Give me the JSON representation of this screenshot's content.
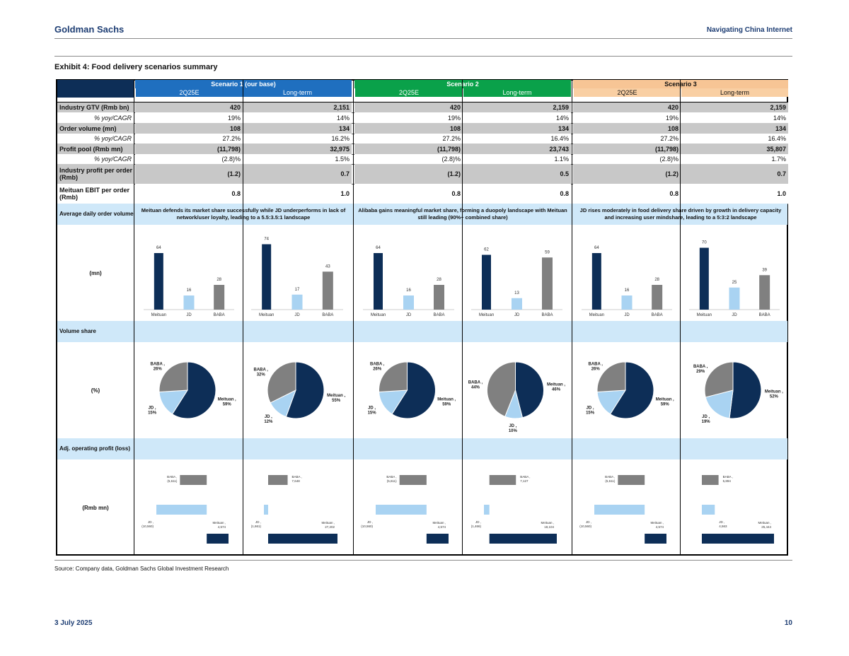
{
  "header": {
    "brand": "Goldman Sachs",
    "report": "Navigating China Internet"
  },
  "exhibit_title": "Exhibit 4: Food delivery scenarios summary",
  "scenarios": [
    {
      "name": "Scenario 1 (our base)",
      "color": "#1f6fbf",
      "sub_color": "#1f6fbf"
    },
    {
      "name": "Scenario 2",
      "color": "#0aa14a",
      "sub_color": "#0aa14a"
    },
    {
      "name": "Scenario 3",
      "color": "#f7c595",
      "sub_color": "#f9cfa3"
    }
  ],
  "col_labels": [
    "2Q25E",
    "Long-term",
    "2Q25E",
    "Long-term",
    "2Q25E",
    "Long-term"
  ],
  "rows": [
    {
      "label": "Industry GTV (Rmb bn)",
      "kind": "main",
      "values": [
        "420",
        "2,151",
        "420",
        "2,159",
        "420",
        "2,159"
      ]
    },
    {
      "label": "% yoy/CAGR",
      "kind": "sub",
      "values": [
        "19%",
        "14%",
        "19%",
        "14%",
        "19%",
        "14%"
      ]
    },
    {
      "label": "Order volume (mn)",
      "kind": "main",
      "values": [
        "108",
        "134",
        "108",
        "134",
        "108",
        "134"
      ]
    },
    {
      "label": "% yoy/CAGR",
      "kind": "sub",
      "values": [
        "27.2%",
        "16.2%",
        "27.2%",
        "16.4%",
        "27.2%",
        "16.4%"
      ]
    },
    {
      "label": "Profit pool (Rmb mn)",
      "kind": "main",
      "values": [
        "(11,798)",
        "32,975",
        "(11,798)",
        "23,743",
        "(11,798)",
        "35,807"
      ]
    },
    {
      "label": "% yoy/CAGR",
      "kind": "sub",
      "values": [
        "(2.8)%",
        "1.5%",
        "(2.8)%",
        "1.1%",
        "(2.8)%",
        "1.7%"
      ]
    },
    {
      "label": "Industry profit per order (Rmb)",
      "kind": "main2",
      "values": [
        "(1.2)",
        "0.7",
        "(1.2)",
        "0.5",
        "(1.2)",
        "0.7"
      ]
    },
    {
      "label": "Meituan EBIT per order (Rmb)",
      "kind": "white2",
      "values": [
        "0.8",
        "1.0",
        "0.8",
        "0.8",
        "0.8",
        "1.0"
      ]
    }
  ],
  "sections": {
    "avg_daily": "Average daily order volume",
    "mn": "(mn)",
    "volume_share": "Volume share",
    "pct": "(%)",
    "adj_op": "Adj. operating profit (loss)",
    "rmb_mn": "(Rmb mn)"
  },
  "descriptions": [
    "Meituan defends its market share successfully while JD underperforms in lack of network/user loyalty, leading to a 5.5:3.5:1 landscape",
    "Alibaba gains meaningful market share, forming a duopoly landscape with Meituan still leading (90%+ combined share)",
    "JD rises moderately in food delivery share driven by growth in delivery capacity and increasing user mindshare, leading to a 5:3:2 landscape"
  ],
  "colors": {
    "meituan": "#0d2e57",
    "jd": "#a9d3f2",
    "baba": "#808080",
    "band": "#cfe8f9",
    "gray_row": "#c8c8c8"
  },
  "chart_data": [
    {
      "type": "bar",
      "categories": [
        "Meituan",
        "JD",
        "BABA"
      ],
      "values": [
        64,
        16,
        28
      ],
      "ylabel": "(mn)",
      "panel": "Scenario 1 2Q25E"
    },
    {
      "type": "bar",
      "categories": [
        "Meituan",
        "JD",
        "BABA"
      ],
      "values": [
        74,
        17,
        43
      ],
      "ylabel": "(mn)",
      "panel": "Scenario 1 Long-term"
    },
    {
      "type": "bar",
      "categories": [
        "Meituan",
        "JD",
        "BABA"
      ],
      "values": [
        64,
        16,
        28
      ],
      "ylabel": "(mn)",
      "panel": "Scenario 2 2Q25E"
    },
    {
      "type": "bar",
      "categories": [
        "Meituan",
        "JD",
        "BABA"
      ],
      "values": [
        62,
        13,
        59
      ],
      "ylabel": "(mn)",
      "panel": "Scenario 2 Long-term"
    },
    {
      "type": "bar",
      "categories": [
        "Meituan",
        "JD",
        "BABA"
      ],
      "values": [
        64,
        16,
        28
      ],
      "ylabel": "(mn)",
      "panel": "Scenario 3 2Q25E"
    },
    {
      "type": "bar",
      "categories": [
        "Meituan",
        "JD",
        "BABA"
      ],
      "values": [
        70,
        25,
        39
      ],
      "ylabel": "(mn)",
      "panel": "Scenario 3 Long-term"
    },
    {
      "type": "pie",
      "labels": [
        "Meituan",
        "JD",
        "BABA"
      ],
      "values": [
        59,
        15,
        26
      ],
      "slice_labels": [
        "Meituan , 59%",
        "JD , 15%",
        "BABA , 26%"
      ]
    },
    {
      "type": "pie",
      "labels": [
        "Meituan",
        "JD",
        "BABA"
      ],
      "values": [
        55,
        12,
        32
      ],
      "slice_labels": [
        "Meituan , 55%",
        "JD , 12%",
        "BABA , 32%"
      ]
    },
    {
      "type": "pie",
      "labels": [
        "Meituan",
        "JD",
        "BABA"
      ],
      "values": [
        59,
        15,
        26
      ],
      "slice_labels": [
        "Meituan , 59%",
        "JD , 15%",
        "BABA , 26%"
      ]
    },
    {
      "type": "pie",
      "labels": [
        "Meituan",
        "JD",
        "BABA"
      ],
      "values": [
        46,
        10,
        44
      ],
      "slice_labels": [
        "Meituan , 46%",
        "JD , 10%",
        "BABA , 44%"
      ]
    },
    {
      "type": "pie",
      "labels": [
        "Meituan",
        "JD",
        "BABA"
      ],
      "values": [
        59,
        15,
        26
      ],
      "slice_labels": [
        "Meituan , 59%",
        "JD , 15%",
        "BABA , 26%"
      ]
    },
    {
      "type": "pie",
      "labels": [
        "Meituan",
        "JD",
        "BABA"
      ],
      "values": [
        52,
        19,
        29
      ],
      "slice_labels": [
        "Meituan , 52%",
        "JD , 19%",
        "BABA , 29%"
      ]
    },
    {
      "type": "bar",
      "orientation": "horizontal",
      "categories": [
        "BABA",
        "JD",
        "Meituan"
      ],
      "values": [
        -5611,
        -10560,
        4574
      ],
      "labels": [
        "BABA , (5,611)",
        "JD , (10,560)",
        "Meituan , 4,574"
      ],
      "ylabel": "(Rmb mn)"
    },
    {
      "type": "bar",
      "orientation": "horizontal",
      "categories": [
        "BABA",
        "JD",
        "Meituan"
      ],
      "values": [
        7648,
        -1661,
        27202
      ],
      "labels": [
        "BABA , 7,648",
        "JD , (1,661)",
        "Meituan , 27,202"
      ],
      "ylabel": "(Rmb mn)"
    },
    {
      "type": "bar",
      "orientation": "horizontal",
      "categories": [
        "BABA",
        "JD",
        "Meituan"
      ],
      "values": [
        -5611,
        -10560,
        4574
      ],
      "labels": [
        "BABA , (5,611)",
        "JD , (10,560)",
        "Meituan , 4,574"
      ],
      "ylabel": "(Rmb mn)"
    },
    {
      "type": "bar",
      "orientation": "horizontal",
      "categories": [
        "BABA",
        "JD",
        "Meituan"
      ],
      "values": [
        7127,
        -1466,
        18104
      ],
      "labels": [
        "BABA , 7,127",
        "JD , (1,466)",
        "Meituan , 18,104"
      ],
      "ylabel": "(Rmb mn)"
    },
    {
      "type": "bar",
      "orientation": "horizontal",
      "categories": [
        "BABA",
        "JD",
        "Meituan"
      ],
      "values": [
        -5611,
        -10560,
        4574
      ],
      "labels": [
        "BABA , (5,611)",
        "JD , (10,560)",
        "Meituan , 4,574"
      ],
      "ylabel": "(Rmb mn)"
    },
    {
      "type": "bar",
      "orientation": "horizontal",
      "categories": [
        "BABA",
        "JD",
        "Meituan"
      ],
      "values": [
        5894,
        4563,
        25444
      ],
      "labels": [
        "BABA , 5,894",
        "JD , 4,563",
        "Meituan , 25,444"
      ],
      "ylabel": "(Rmb mn)"
    }
  ],
  "source": "Source: Company data, Goldman Sachs Global Investment Research",
  "footer": {
    "date": "3 July 2025",
    "page": "10"
  }
}
